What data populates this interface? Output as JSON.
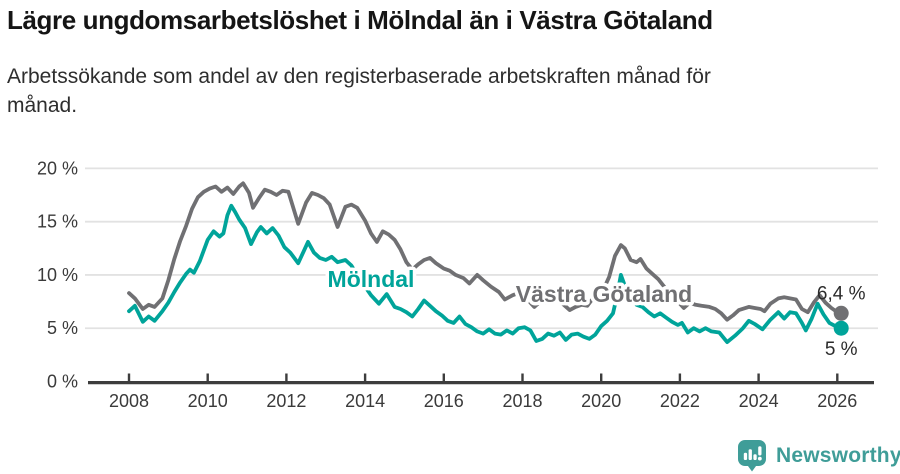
{
  "header": {
    "title": "Lägre ungdomsarbetslöshet i Mölndal än i Västra Götaland",
    "subtitle_lines": [
      "Arbetssökande som andel av den registerbaserade arbetskraften månad för",
      "månad."
    ]
  },
  "chart_data": {
    "type": "line",
    "title": "Lägre ungdomsarbetslöshet i Mölndal än i Västra Götaland",
    "subtitle": "Arbetssökande som andel av den registerbaserade arbetskraften månad för månad.",
    "legend": "inline-labels",
    "grid": "horizontal",
    "style": {
      "grid_color": "#e2e2e2",
      "axis_color": "#3d3d3d",
      "tick_label_color": "#3a3a3a",
      "annotation_color": "#2b2b2b"
    },
    "x_axis": {
      "unit": "year",
      "range": [
        2008,
        2026.2
      ],
      "values": [
        2008,
        2010,
        2012,
        2014,
        2016,
        2018,
        2020,
        2022,
        2024,
        2026
      ],
      "labels": [
        "2008",
        "2010",
        "2012",
        "2014",
        "2016",
        "2018",
        "2020",
        "2022",
        "2024",
        "2026"
      ]
    },
    "y_axis": {
      "unit": "%",
      "range": [
        0,
        20
      ],
      "values": [
        0,
        5,
        10,
        15,
        20
      ],
      "labels": [
        "0 %",
        "5 %",
        "10 %",
        "15 %",
        "20 %"
      ]
    },
    "series": [
      {
        "name": "Västra Götaland",
        "color": "#707073",
        "end_label": "6,4 %",
        "end_value": 6.4,
        "points": [
          [
            2008.0,
            8.3
          ],
          [
            2008.15,
            7.8
          ],
          [
            2008.35,
            6.8
          ],
          [
            2008.5,
            7.2
          ],
          [
            2008.65,
            7.0
          ],
          [
            2008.85,
            7.8
          ],
          [
            2009.0,
            9.5
          ],
          [
            2009.15,
            11.5
          ],
          [
            2009.3,
            13.2
          ],
          [
            2009.45,
            14.6
          ],
          [
            2009.6,
            16.2
          ],
          [
            2009.75,
            17.3
          ],
          [
            2009.9,
            17.8
          ],
          [
            2010.05,
            18.1
          ],
          [
            2010.2,
            18.3
          ],
          [
            2010.35,
            17.8
          ],
          [
            2010.5,
            18.2
          ],
          [
            2010.65,
            17.6
          ],
          [
            2010.8,
            18.3
          ],
          [
            2010.9,
            18.6
          ],
          [
            2011.05,
            17.7
          ],
          [
            2011.15,
            16.3
          ],
          [
            2011.3,
            17.2
          ],
          [
            2011.45,
            18.0
          ],
          [
            2011.6,
            17.8
          ],
          [
            2011.75,
            17.5
          ],
          [
            2011.9,
            17.9
          ],
          [
            2012.05,
            17.8
          ],
          [
            2012.3,
            14.8
          ],
          [
            2012.5,
            16.8
          ],
          [
            2012.65,
            17.7
          ],
          [
            2012.8,
            17.5
          ],
          [
            2012.95,
            17.2
          ],
          [
            2013.1,
            16.6
          ],
          [
            2013.3,
            14.5
          ],
          [
            2013.5,
            16.4
          ],
          [
            2013.65,
            16.6
          ],
          [
            2013.8,
            16.3
          ],
          [
            2014.0,
            15.1
          ],
          [
            2014.15,
            13.9
          ],
          [
            2014.3,
            13.1
          ],
          [
            2014.45,
            14.1
          ],
          [
            2014.6,
            13.8
          ],
          [
            2014.75,
            13.3
          ],
          [
            2014.9,
            12.4
          ],
          [
            2015.05,
            11.2
          ],
          [
            2015.2,
            10.5
          ],
          [
            2015.35,
            11.0
          ],
          [
            2015.5,
            11.4
          ],
          [
            2015.65,
            11.6
          ],
          [
            2015.8,
            11.1
          ],
          [
            2016.0,
            10.6
          ],
          [
            2016.15,
            10.4
          ],
          [
            2016.3,
            10.0
          ],
          [
            2016.5,
            9.7
          ],
          [
            2016.65,
            9.2
          ],
          [
            2016.85,
            10.0
          ],
          [
            2017.0,
            9.5
          ],
          [
            2017.2,
            8.9
          ],
          [
            2017.4,
            8.4
          ],
          [
            2017.55,
            7.7
          ],
          [
            2017.75,
            8.1
          ],
          [
            2017.9,
            8.3
          ],
          [
            2018.05,
            8.0
          ],
          [
            2018.3,
            7.0
          ],
          [
            2018.45,
            7.5
          ],
          [
            2018.6,
            7.4
          ],
          [
            2018.75,
            7.5
          ],
          [
            2018.9,
            7.6
          ],
          [
            2019.05,
            7.2
          ],
          [
            2019.2,
            6.7
          ],
          [
            2019.35,
            7.0
          ],
          [
            2019.5,
            7.2
          ],
          [
            2019.65,
            7.1
          ],
          [
            2019.85,
            8.1
          ],
          [
            2020.05,
            8.6
          ],
          [
            2020.2,
            9.8
          ],
          [
            2020.35,
            11.8
          ],
          [
            2020.5,
            12.8
          ],
          [
            2020.6,
            12.5
          ],
          [
            2020.75,
            11.4
          ],
          [
            2020.9,
            11.2
          ],
          [
            2021.0,
            11.5
          ],
          [
            2021.15,
            10.6
          ],
          [
            2021.3,
            10.1
          ],
          [
            2021.45,
            9.6
          ],
          [
            2021.6,
            8.9
          ],
          [
            2021.75,
            8.2
          ],
          [
            2021.9,
            7.6
          ],
          [
            2022.0,
            7.3
          ],
          [
            2022.1,
            6.9
          ],
          [
            2022.25,
            7.4
          ],
          [
            2022.4,
            7.2
          ],
          [
            2022.55,
            7.1
          ],
          [
            2022.75,
            7.0
          ],
          [
            2022.9,
            6.8
          ],
          [
            2023.05,
            6.4
          ],
          [
            2023.2,
            5.8
          ],
          [
            2023.35,
            6.2
          ],
          [
            2023.5,
            6.7
          ],
          [
            2023.75,
            7.0
          ],
          [
            2023.9,
            6.9
          ],
          [
            2024.05,
            6.8
          ],
          [
            2024.15,
            6.6
          ],
          [
            2024.3,
            7.3
          ],
          [
            2024.5,
            7.8
          ],
          [
            2024.65,
            7.9
          ],
          [
            2024.8,
            7.8
          ],
          [
            2024.95,
            7.7
          ],
          [
            2025.1,
            6.8
          ],
          [
            2025.25,
            6.5
          ],
          [
            2025.4,
            7.4
          ],
          [
            2025.55,
            8.1
          ],
          [
            2025.7,
            7.4
          ],
          [
            2025.85,
            6.9
          ],
          [
            2026.0,
            6.5
          ],
          [
            2026.1,
            6.4
          ]
        ]
      },
      {
        "name": "Mölndal",
        "color": "#00a49a",
        "end_label": "5 %",
        "end_value": 5.0,
        "points": [
          [
            2008.0,
            6.6
          ],
          [
            2008.15,
            7.1
          ],
          [
            2008.35,
            5.6
          ],
          [
            2008.5,
            6.1
          ],
          [
            2008.65,
            5.7
          ],
          [
            2008.85,
            6.6
          ],
          [
            2009.0,
            7.4
          ],
          [
            2009.15,
            8.4
          ],
          [
            2009.3,
            9.3
          ],
          [
            2009.45,
            10.1
          ],
          [
            2009.55,
            10.5
          ],
          [
            2009.65,
            10.2
          ],
          [
            2009.8,
            11.3
          ],
          [
            2010.0,
            13.3
          ],
          [
            2010.15,
            14.1
          ],
          [
            2010.3,
            13.6
          ],
          [
            2010.4,
            13.9
          ],
          [
            2010.5,
            15.6
          ],
          [
            2010.6,
            16.5
          ],
          [
            2010.7,
            15.9
          ],
          [
            2010.8,
            15.2
          ],
          [
            2010.95,
            14.4
          ],
          [
            2011.1,
            12.9
          ],
          [
            2011.25,
            14.0
          ],
          [
            2011.35,
            14.5
          ],
          [
            2011.5,
            13.9
          ],
          [
            2011.65,
            14.4
          ],
          [
            2011.8,
            13.7
          ],
          [
            2011.95,
            12.6
          ],
          [
            2012.1,
            12.1
          ],
          [
            2012.3,
            11.1
          ],
          [
            2012.45,
            12.3
          ],
          [
            2012.55,
            13.1
          ],
          [
            2012.7,
            12.1
          ],
          [
            2012.85,
            11.6
          ],
          [
            2013.0,
            11.4
          ],
          [
            2013.15,
            11.7
          ],
          [
            2013.3,
            11.2
          ],
          [
            2013.5,
            11.4
          ],
          [
            2013.65,
            10.9
          ],
          [
            2013.8,
            10.0
          ],
          [
            2014.0,
            8.9
          ],
          [
            2014.15,
            8.1
          ],
          [
            2014.35,
            7.3
          ],
          [
            2014.55,
            8.2
          ],
          [
            2014.75,
            7.0
          ],
          [
            2014.9,
            6.8
          ],
          [
            2015.05,
            6.5
          ],
          [
            2015.2,
            6.1
          ],
          [
            2015.35,
            6.8
          ],
          [
            2015.5,
            7.6
          ],
          [
            2015.65,
            7.1
          ],
          [
            2015.8,
            6.6
          ],
          [
            2015.95,
            6.2
          ],
          [
            2016.1,
            5.7
          ],
          [
            2016.25,
            5.5
          ],
          [
            2016.4,
            6.1
          ],
          [
            2016.55,
            5.4
          ],
          [
            2016.7,
            5.1
          ],
          [
            2016.85,
            4.7
          ],
          [
            2017.0,
            4.5
          ],
          [
            2017.15,
            4.9
          ],
          [
            2017.3,
            4.5
          ],
          [
            2017.45,
            4.4
          ],
          [
            2017.6,
            4.8
          ],
          [
            2017.75,
            4.5
          ],
          [
            2017.9,
            5.0
          ],
          [
            2018.05,
            5.1
          ],
          [
            2018.2,
            4.8
          ],
          [
            2018.35,
            3.8
          ],
          [
            2018.5,
            4.0
          ],
          [
            2018.65,
            4.5
          ],
          [
            2018.8,
            4.3
          ],
          [
            2018.95,
            4.6
          ],
          [
            2019.1,
            3.9
          ],
          [
            2019.25,
            4.4
          ],
          [
            2019.4,
            4.5
          ],
          [
            2019.55,
            4.2
          ],
          [
            2019.7,
            4.0
          ],
          [
            2019.85,
            4.4
          ],
          [
            2020.0,
            5.2
          ],
          [
            2020.15,
            5.7
          ],
          [
            2020.3,
            6.4
          ],
          [
            2020.4,
            8.0
          ],
          [
            2020.5,
            10.0
          ],
          [
            2020.6,
            9.0
          ],
          [
            2020.75,
            8.2
          ],
          [
            2020.9,
            7.2
          ],
          [
            2021.05,
            7.0
          ],
          [
            2021.2,
            6.5
          ],
          [
            2021.35,
            6.1
          ],
          [
            2021.5,
            6.4
          ],
          [
            2021.65,
            6.0
          ],
          [
            2021.8,
            5.6
          ],
          [
            2021.95,
            5.3
          ],
          [
            2022.05,
            5.5
          ],
          [
            2022.2,
            4.6
          ],
          [
            2022.35,
            5.0
          ],
          [
            2022.5,
            4.7
          ],
          [
            2022.65,
            5.0
          ],
          [
            2022.8,
            4.7
          ],
          [
            2023.0,
            4.6
          ],
          [
            2023.2,
            3.7
          ],
          [
            2023.4,
            4.3
          ],
          [
            2023.6,
            5.0
          ],
          [
            2023.75,
            5.7
          ],
          [
            2023.9,
            5.4
          ],
          [
            2024.1,
            4.9
          ],
          [
            2024.3,
            5.8
          ],
          [
            2024.5,
            6.5
          ],
          [
            2024.65,
            5.9
          ],
          [
            2024.8,
            6.5
          ],
          [
            2024.95,
            6.4
          ],
          [
            2025.1,
            5.5
          ],
          [
            2025.2,
            4.8
          ],
          [
            2025.35,
            5.9
          ],
          [
            2025.5,
            7.3
          ],
          [
            2025.65,
            6.3
          ],
          [
            2025.8,
            5.5
          ],
          [
            2025.95,
            5.2
          ],
          [
            2026.1,
            5.0
          ]
        ]
      }
    ]
  },
  "footer": {
    "brand": "Newsworthy",
    "brand_color": "#3f9d98"
  }
}
